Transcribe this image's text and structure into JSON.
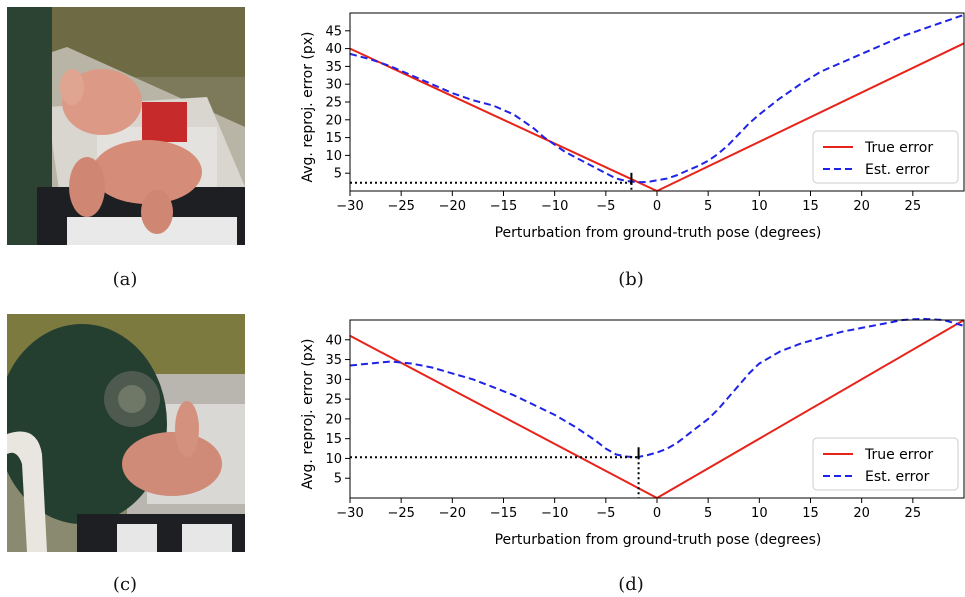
{
  "captions": {
    "a": "(a)",
    "b": "(b)",
    "c": "(c)",
    "d": "(d)"
  },
  "colors": {
    "true_error": "#e8231a",
    "est_error": "#1f23e6",
    "marker": "#000000"
  },
  "chart_data": [
    {
      "panel": "b",
      "type": "line",
      "xlabel": "Perturbation from ground-truth pose (degrees)",
      "ylabel": "Avg. reproj. error (px)",
      "xlim": [
        -30,
        30
      ],
      "ylim": [
        0,
        50
      ],
      "xticks": [
        -30,
        -25,
        -20,
        -15,
        -10,
        -5,
        0,
        5,
        10,
        15,
        20,
        25
      ],
      "yticks": [
        5,
        10,
        15,
        20,
        25,
        30,
        35,
        40,
        45
      ],
      "legend": {
        "position": "lower-right",
        "entries": [
          "True error",
          "Est. error"
        ]
      },
      "series": [
        {
          "name": "True error",
          "style": "solid",
          "x": [
            -30,
            0,
            30
          ],
          "y": [
            40,
            0,
            41.5
          ]
        },
        {
          "name": "Est. error",
          "style": "dashed",
          "x": [
            -30,
            -28,
            -26,
            -24,
            -22,
            -20,
            -18,
            -16,
            -14,
            -13,
            -12,
            -11,
            -10,
            -9,
            -8,
            -7,
            -6,
            -5,
            -4,
            -3,
            -2,
            -1,
            0,
            1,
            2,
            3,
            4,
            5,
            6,
            7,
            8,
            9,
            10,
            12,
            14,
            16,
            18,
            20,
            22,
            24,
            26,
            28,
            30
          ],
          "y": [
            38.5,
            37,
            35,
            32.5,
            30,
            27.5,
            25.5,
            24,
            21.5,
            19.5,
            17.5,
            15,
            13,
            11,
            9.5,
            8,
            6.5,
            5,
            3.5,
            2.8,
            2.5,
            2.5,
            3,
            3.5,
            4.5,
            5.8,
            7,
            8.5,
            10.5,
            13,
            16,
            19,
            21.5,
            26,
            30,
            33.5,
            36,
            38.5,
            41,
            43.5,
            45.5,
            47.5,
            49.5
          ]
        }
      ],
      "estimate_marker": {
        "x": -2.5,
        "y": 2.3
      }
    },
    {
      "panel": "d",
      "type": "line",
      "xlabel": "Perturbation from ground-truth pose (degrees)",
      "ylabel": "Avg. reproj. error (px)",
      "xlim": [
        -30,
        30
      ],
      "ylim": [
        0,
        45
      ],
      "xticks": [
        -30,
        -25,
        -20,
        -15,
        -10,
        -5,
        0,
        5,
        10,
        15,
        20,
        25
      ],
      "yticks": [
        5,
        10,
        15,
        20,
        25,
        30,
        35,
        40
      ],
      "legend": {
        "position": "lower-right",
        "entries": [
          "True error",
          "Est. error"
        ]
      },
      "series": [
        {
          "name": "True error",
          "style": "solid",
          "x": [
            -30,
            0,
            30
          ],
          "y": [
            41,
            0,
            45
          ]
        },
        {
          "name": "Est. error",
          "style": "dashed",
          "x": [
            -30,
            -28,
            -26,
            -24,
            -22,
            -20,
            -18,
            -16,
            -14,
            -12,
            -10,
            -8,
            -6,
            -5,
            -4,
            -3,
            -2,
            -1,
            0,
            1,
            2,
            3,
            4,
            5,
            6,
            7,
            8,
            9,
            10,
            12,
            14,
            16,
            18,
            20,
            22,
            24,
            26,
            28,
            30
          ],
          "y": [
            33.5,
            34,
            34.5,
            34,
            33,
            31.5,
            30,
            28,
            26,
            23.5,
            21,
            18,
            14.5,
            12.5,
            11,
            10.5,
            10.3,
            10.8,
            11.5,
            12.5,
            14,
            16,
            18,
            20,
            22.5,
            25.5,
            28.5,
            31.5,
            34,
            37,
            39,
            40.5,
            42,
            43,
            44,
            45,
            45.3,
            45,
            43.5
          ]
        }
      ],
      "estimate_marker": {
        "x": -1.8,
        "y": 10.3
      }
    }
  ]
}
